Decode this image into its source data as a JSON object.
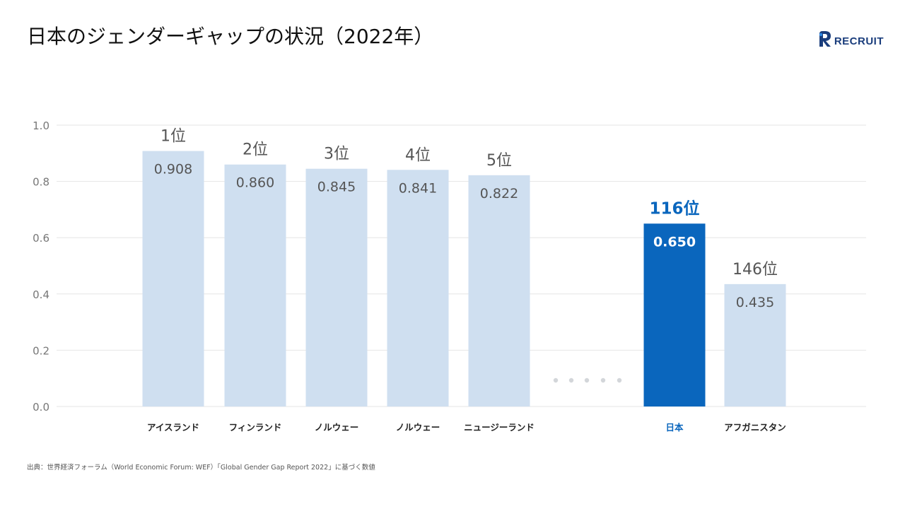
{
  "slide": {
    "title": "日本のジェンダーギャップの状況（2022年）",
    "logo_text": "RECRUIT",
    "source": "出典：世界経済フォーラム（World Economic Forum: WEF）「Global Gender Gap Report 2022」に基づく数値"
  },
  "chart_data": {
    "type": "bar",
    "title": "日本のジェンダーギャップの状況（2022年）",
    "xlabel": "",
    "ylabel": "",
    "ylim": [
      0,
      1.0
    ],
    "yticks": [
      "0.0",
      "0.2",
      "0.4",
      "0.6",
      "0.8",
      "1.0"
    ],
    "grid": true,
    "categories": [
      "アイスランド",
      "フィンランド",
      "ノルウェー",
      "ノルウェー",
      "ニュージーランド",
      "日本",
      "アフガニスタン"
    ],
    "values": [
      0.908,
      0.86,
      0.845,
      0.841,
      0.822,
      0.65,
      0.435
    ],
    "value_labels": [
      "0.908",
      "0.860",
      "0.845",
      "0.841",
      "0.822",
      "0.650",
      "0.435"
    ],
    "ranks": [
      "1位",
      "2位",
      "3位",
      "4位",
      "5位",
      "116位",
      "146位"
    ],
    "highlight": [
      false,
      false,
      false,
      false,
      false,
      true,
      false
    ],
    "gap_marker": "• • • • •",
    "colors": {
      "bar": "#cfdff0",
      "highlight": "#0a66bd",
      "grid": "#e6e6e6",
      "rank_text": "#555555",
      "value_text": "#555555",
      "highlight_value_text": "#ffffff",
      "axis_text": "#777777",
      "category_text": "#222222",
      "dots": "#d3d6da"
    }
  }
}
